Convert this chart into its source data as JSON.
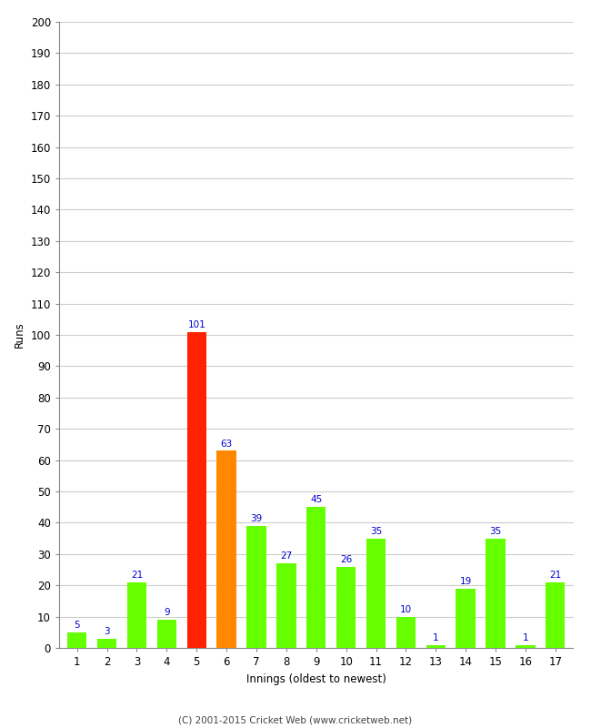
{
  "xlabel": "Innings (oldest to newest)",
  "ylabel": "Runs",
  "categories": [
    1,
    2,
    3,
    4,
    5,
    6,
    7,
    8,
    9,
    10,
    11,
    12,
    13,
    14,
    15,
    16,
    17
  ],
  "values": [
    5,
    3,
    21,
    9,
    101,
    63,
    39,
    27,
    45,
    26,
    35,
    10,
    1,
    19,
    35,
    1,
    21
  ],
  "colors": [
    "#66ff00",
    "#66ff00",
    "#66ff00",
    "#66ff00",
    "#ff2200",
    "#ff8800",
    "#66ff00",
    "#66ff00",
    "#66ff00",
    "#66ff00",
    "#66ff00",
    "#66ff00",
    "#66ff00",
    "#66ff00",
    "#66ff00",
    "#66ff00",
    "#66ff00"
  ],
  "ylim": [
    0,
    200
  ],
  "yticks": [
    0,
    10,
    20,
    30,
    40,
    50,
    60,
    70,
    80,
    90,
    100,
    110,
    120,
    130,
    140,
    150,
    160,
    170,
    180,
    190,
    200
  ],
  "label_color": "#0000cc",
  "label_fontsize": 7.5,
  "axis_label_fontsize": 8.5,
  "tick_fontsize": 8.5,
  "footer": "(C) 2001-2015 Cricket Web (www.cricketweb.net)",
  "background_color": "#ffffff",
  "grid_color": "#cccccc",
  "bar_width": 0.65
}
